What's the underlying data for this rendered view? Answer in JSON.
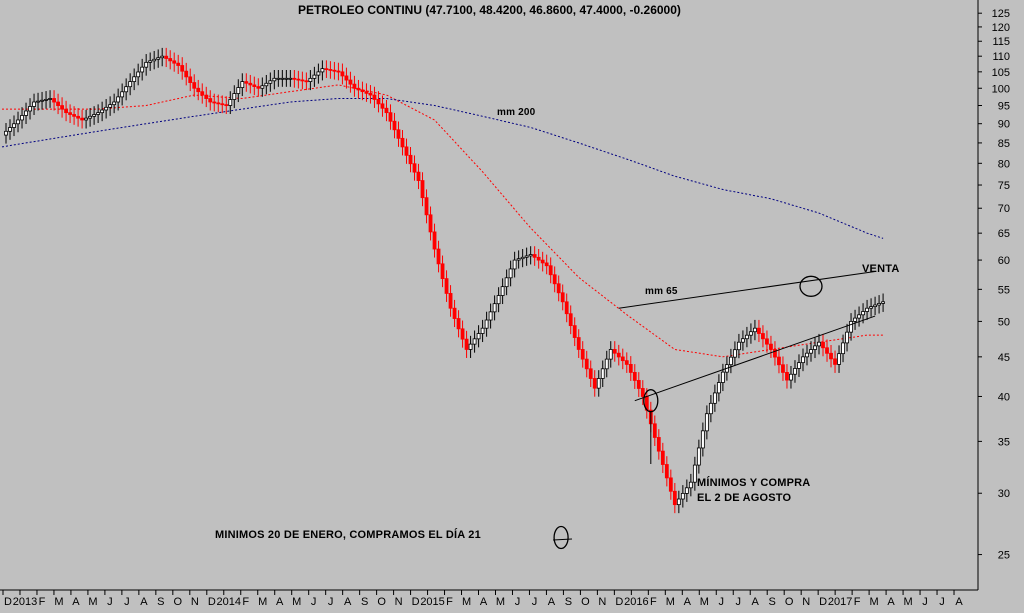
{
  "chart_data": {
    "type": "line",
    "title": "PETROLEO CONTINU (47.7100, 48.4200, 46.8600, 47.4000, -0.26000)",
    "ylim": [
      22.5,
      130
    ],
    "log_scale": true,
    "grid": false,
    "y_ticks": [
      125,
      120,
      115,
      110,
      105,
      100,
      95,
      90,
      85,
      80,
      75,
      70,
      65,
      60,
      55,
      50,
      45,
      40,
      35,
      30,
      25
    ],
    "x_ticks": [
      "D",
      "2013",
      "F",
      "M",
      "A",
      "M",
      "J",
      "J",
      "A",
      "S",
      "O",
      "N",
      "D",
      "2014",
      "F",
      "M",
      "A",
      "M",
      "J",
      "J",
      "A",
      "S",
      "O",
      "N",
      "D",
      "2015",
      "F",
      "M",
      "A",
      "M",
      "J",
      "J",
      "A",
      "S",
      "O",
      "N",
      "D",
      "2016",
      "F",
      "M",
      "A",
      "M",
      "J",
      "J",
      "A",
      "S",
      "O",
      "N",
      "D",
      "2017",
      "F",
      "M",
      "A",
      "M",
      "J",
      "J",
      "A"
    ],
    "series": [
      {
        "name": "price",
        "color": "#000000",
        "down_color": "#ff0000",
        "x": [
          0,
          1,
          2,
          3,
          4,
          5,
          6,
          7,
          8,
          9,
          10,
          11,
          12,
          13,
          14,
          15,
          16,
          17,
          18,
          19,
          20,
          21,
          22,
          23,
          24,
          25,
          26,
          27,
          28,
          29,
          30,
          31,
          32,
          33,
          34,
          35,
          36,
          37,
          38,
          39,
          40,
          41,
          42,
          43,
          44,
          45,
          46,
          47,
          48,
          49,
          50,
          51,
          52,
          53,
          54,
          55
        ],
        "values": [
          87,
          91,
          96,
          97,
          93,
          91,
          93,
          96,
          102,
          108,
          110,
          107,
          100,
          96,
          95,
          102,
          100,
          103,
          103,
          102,
          106,
          105,
          100,
          98,
          93,
          84,
          76,
          62,
          52,
          46,
          49,
          54,
          60,
          61,
          59,
          53,
          46,
          41,
          46,
          44,
          40,
          34,
          29,
          31,
          38,
          43,
          47,
          49,
          46,
          42,
          45,
          47,
          44,
          50,
          52,
          53
        ]
      },
      {
        "name": "mm 65",
        "color": "#ff0000",
        "x": [
          0,
          3,
          6,
          9,
          12,
          15,
          18,
          21,
          24,
          27,
          30,
          33,
          36,
          39,
          42,
          45,
          48,
          51,
          54,
          55
        ],
        "values": [
          94,
          94,
          94,
          95,
          98,
          97,
          99,
          101,
          98,
          91,
          78,
          66,
          57,
          51,
          46,
          45,
          46,
          47,
          48,
          48
        ]
      },
      {
        "name": "mm 200",
        "color": "#000080",
        "x": [
          0,
          3,
          6,
          9,
          12,
          15,
          18,
          21,
          24,
          27,
          30,
          33,
          36,
          39,
          42,
          45,
          48,
          51,
          54,
          55
        ],
        "values": [
          84,
          86,
          88,
          90,
          92,
          94,
          96,
          97,
          97,
          95,
          92,
          89,
          85,
          81,
          77,
          74,
          72,
          69,
          65,
          64
        ]
      }
    ],
    "annotations": [
      {
        "text": "mm 200",
        "color": "#000080"
      },
      {
        "text": "mm 65",
        "color": "#ff0000"
      },
      {
        "text": "VENTA",
        "color": "#000000"
      },
      {
        "text": "MÍNIMOS Y COMPRA",
        "color": "#000000"
      },
      {
        "text": "EL 2 DE AGOSTO",
        "color": "#000000"
      },
      {
        "text": "MINIMOS 20 DE ENERO, COMPRAMOS EL DÍA 21",
        "color": "#000000"
      }
    ],
    "trendlines": [
      {
        "name": "upper-trendline",
        "x": [
          38.5,
          54.5
        ],
        "values": [
          52,
          58
        ]
      },
      {
        "name": "lower-trendline",
        "x": [
          39.5,
          54.5
        ],
        "values": [
          39.5,
          50.8
        ]
      }
    ],
    "markers": [
      {
        "name": "venta-circle",
        "x": 50.5,
        "value": 55.5
      },
      {
        "name": "august-low-circle",
        "x": 40.5,
        "value": 39.5
      },
      {
        "name": "january-low-circle",
        "x": 34.9,
        "value": 26.3
      }
    ]
  }
}
